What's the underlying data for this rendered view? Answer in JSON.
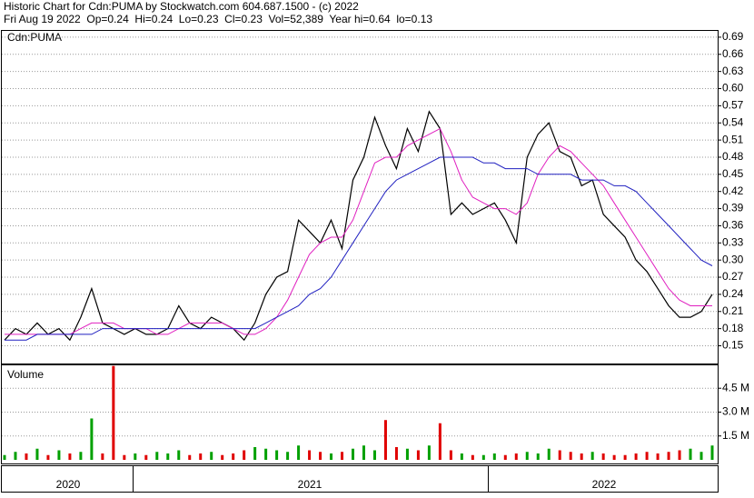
{
  "header": {
    "title": "Historic Chart for Cdn:PUMA by Stockwatch.com 604.687.1500 - (c) 2022",
    "quote": "Fri Aug 19 2022  Op=0.24  Hi=0.24  Lo=0.23  Cl=0.23  Vol=52,389  Year hi=0.64  lo=0.13"
  },
  "chart_data": [
    {
      "type": "line",
      "label": "Cdn:PUMA",
      "ylim": [
        0.119,
        0.701
      ],
      "yticks": [
        0.15,
        0.18,
        0.21,
        0.24,
        0.27,
        {
          "value": 0.3,
          "label": "0.30"
        },
        0.33,
        0.36,
        0.39,
        0.42,
        0.45,
        0.48,
        0.51,
        0.54,
        0.57,
        {
          "value": 0.6,
          "label": "0.60"
        },
        0.63,
        0.66,
        0.69
      ],
      "grid": true,
      "series": [
        {
          "color": "#000000",
          "values": [
            0.16,
            0.18,
            0.17,
            0.19,
            0.17,
            0.18,
            0.16,
            0.2,
            0.25,
            0.19,
            0.18,
            0.17,
            0.18,
            0.17,
            0.17,
            0.18,
            0.22,
            0.19,
            0.18,
            0.2,
            0.19,
            0.18,
            0.16,
            0.19,
            0.24,
            0.27,
            0.28,
            0.37,
            0.35,
            0.33,
            0.37,
            0.32,
            0.44,
            0.48,
            0.55,
            0.5,
            0.46,
            0.53,
            0.49,
            0.56,
            0.53,
            0.38,
            0.4,
            0.38,
            0.39,
            0.4,
            0.37,
            0.33,
            0.48,
            0.52,
            0.54,
            0.49,
            0.48,
            0.43,
            0.44,
            0.38,
            0.36,
            0.34,
            0.3,
            0.28,
            0.25,
            0.22,
            0.2,
            0.2,
            0.21,
            0.24
          ]
        },
        {
          "color": "#e020c0",
          "values": [
            0.17,
            0.17,
            0.17,
            0.17,
            0.17,
            0.17,
            0.17,
            0.18,
            0.19,
            0.19,
            0.19,
            0.18,
            0.18,
            0.18,
            0.17,
            0.17,
            0.18,
            0.19,
            0.19,
            0.19,
            0.19,
            0.18,
            0.17,
            0.17,
            0.18,
            0.2,
            0.23,
            0.27,
            0.31,
            0.33,
            0.34,
            0.34,
            0.37,
            0.42,
            0.47,
            0.48,
            0.48,
            0.5,
            0.51,
            0.52,
            0.53,
            0.49,
            0.44,
            0.41,
            0.4,
            0.39,
            0.39,
            0.38,
            0.4,
            0.45,
            0.48,
            0.5,
            0.49,
            0.47,
            0.45,
            0.43,
            0.4,
            0.37,
            0.34,
            0.31,
            0.28,
            0.25,
            0.23,
            0.22,
            0.22,
            0.22
          ]
        },
        {
          "color": "#2020c0",
          "values": [
            0.16,
            0.16,
            0.16,
            0.17,
            0.17,
            0.17,
            0.17,
            0.17,
            0.17,
            0.18,
            0.18,
            0.18,
            0.18,
            0.18,
            0.18,
            0.18,
            0.18,
            0.18,
            0.18,
            0.18,
            0.18,
            0.18,
            0.18,
            0.18,
            0.19,
            0.2,
            0.21,
            0.22,
            0.24,
            0.25,
            0.27,
            0.3,
            0.33,
            0.36,
            0.39,
            0.42,
            0.44,
            0.45,
            0.46,
            0.47,
            0.48,
            0.48,
            0.48,
            0.48,
            0.47,
            0.47,
            0.46,
            0.46,
            0.46,
            0.45,
            0.45,
            0.45,
            0.45,
            0.44,
            0.44,
            0.44,
            0.43,
            0.43,
            0.42,
            0.4,
            0.38,
            0.36,
            0.34,
            0.32,
            0.3,
            0.29
          ]
        }
      ]
    },
    {
      "type": "bar",
      "label": "Volume",
      "ylim": [
        0,
        5940000
      ],
      "yticks": [
        {
          "value": 1500000,
          "label": "1.5 M"
        },
        {
          "value": 3000000,
          "label": "3.0 M"
        },
        {
          "value": 4500000,
          "label": "4.5 M"
        }
      ],
      "grid": true,
      "up_color": "#00a000",
      "down_color": "#e00000",
      "values": [
        300000,
        500000,
        400000,
        700000,
        300000,
        600000,
        400000,
        500000,
        2600000,
        400000,
        5900000,
        300000,
        400000,
        300000,
        500000,
        400000,
        600000,
        300000,
        400000,
        500000,
        300000,
        400000,
        600000,
        800000,
        700000,
        600000,
        500000,
        900000,
        600000,
        500000,
        400000,
        500000,
        700000,
        900000,
        600000,
        2500000,
        800000,
        700000,
        600000,
        900000,
        2300000,
        600000,
        400000,
        300000,
        300000,
        400000,
        300000,
        400000,
        500000,
        400000,
        700000,
        600000,
        500000,
        400000,
        500000,
        400000,
        300000,
        300000,
        400000,
        500000,
        400000,
        500000,
        600000,
        700000,
        500000,
        900000
      ],
      "period_labels": [
        "2020",
        "2021",
        "2022"
      ]
    }
  ]
}
